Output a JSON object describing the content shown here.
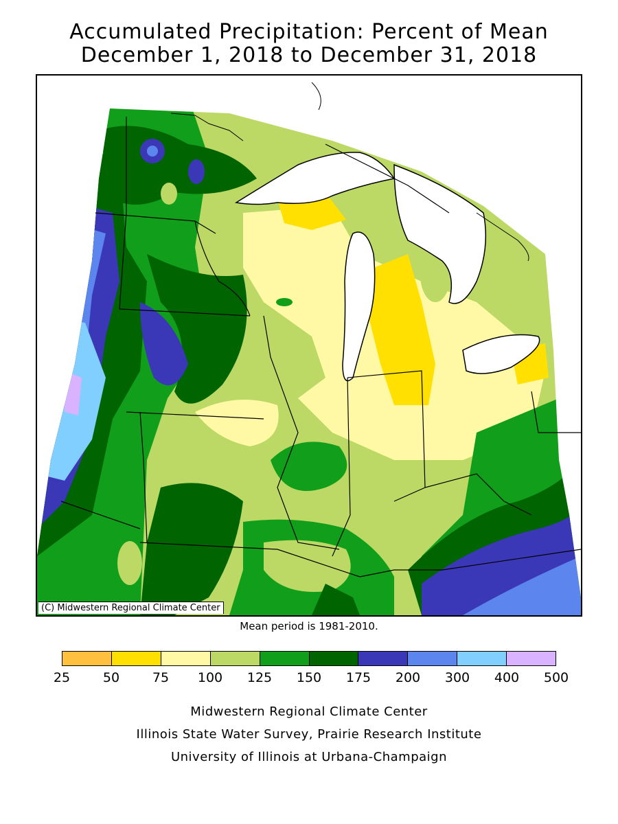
{
  "title": {
    "line1": "Accumulated Precipitation: Percent of Mean",
    "line2": "December 1, 2018 to December 31, 2018"
  },
  "map": {
    "copyright": "(C) Midwestern Regional Climate Center",
    "mean_period": "Mean period is 1981-2010."
  },
  "legend": {
    "ticks": [
      "25",
      "50",
      "75",
      "100",
      "125",
      "150",
      "175",
      "200",
      "300",
      "400",
      "500"
    ],
    "colors": [
      "#ffbf3f",
      "#ffe000",
      "#fff9a6",
      "#bcd966",
      "#119e1a",
      "#006400",
      "#3b38b8",
      "#5c85ed",
      "#80cfff",
      "#d9b3ff"
    ]
  },
  "credits": {
    "line1": "Midwestern Regional Climate Center",
    "line2": "Illinois State Water Survey, Prairie Research Institute",
    "line3": "University of Illinois at Urbana-Champaign"
  }
}
